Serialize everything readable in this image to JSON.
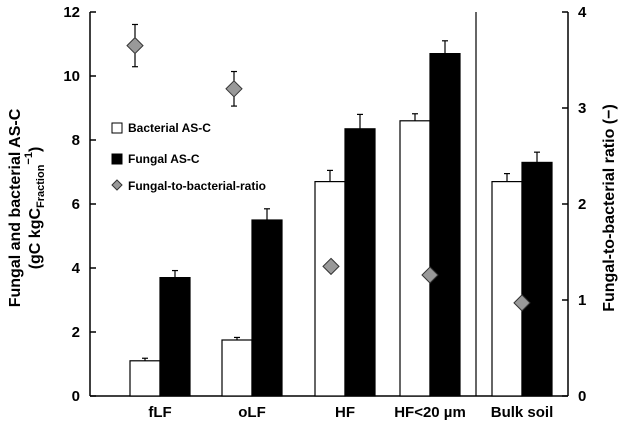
{
  "chart_data": {
    "type": "bar",
    "categories": [
      "fLF",
      "oLF",
      "HF",
      "HF<20 µm",
      "Bulk soil"
    ],
    "series": [
      {
        "name": "Bacterial AS-C",
        "axis": "left",
        "color": "#ffffff",
        "values": [
          1.1,
          1.75,
          6.7,
          8.6,
          6.7
        ],
        "errors": [
          0.08,
          0.08,
          0.35,
          0.22,
          0.25
        ]
      },
      {
        "name": "Fungal AS-C",
        "axis": "left",
        "color": "#000000",
        "values": [
          3.7,
          5.5,
          8.35,
          10.7,
          7.3
        ],
        "errors": [
          0.22,
          0.35,
          0.45,
          0.4,
          0.32
        ]
      },
      {
        "name": "Fungal-to-bacterial-ratio",
        "axis": "right",
        "type": "scatter",
        "color": "#999999",
        "values": [
          3.65,
          3.2,
          1.35,
          1.26,
          0.97
        ],
        "errors": [
          0.22,
          0.18,
          0,
          0,
          0
        ]
      }
    ],
    "ylabel_left_line1": "Fungal and bacterial AS-C",
    "ylabel_left_line2_prefix": "(gC kgC",
    "ylabel_left_subscript": "Fraction",
    "ylabel_left_superscript": "−1",
    "ylabel_left_line2_suffix": ")",
    "ylabel_right": "Fungal-to-bacterial ratio (−)",
    "ylim_left": [
      0,
      12
    ],
    "ylim_right": [
      0,
      4
    ],
    "yticks_left": [
      "0",
      "2",
      "4",
      "6",
      "8",
      "10",
      "12"
    ],
    "yticks_right": [
      "0",
      "1",
      "2",
      "3",
      "4"
    ],
    "grid": false,
    "legend_position": "center-left"
  }
}
